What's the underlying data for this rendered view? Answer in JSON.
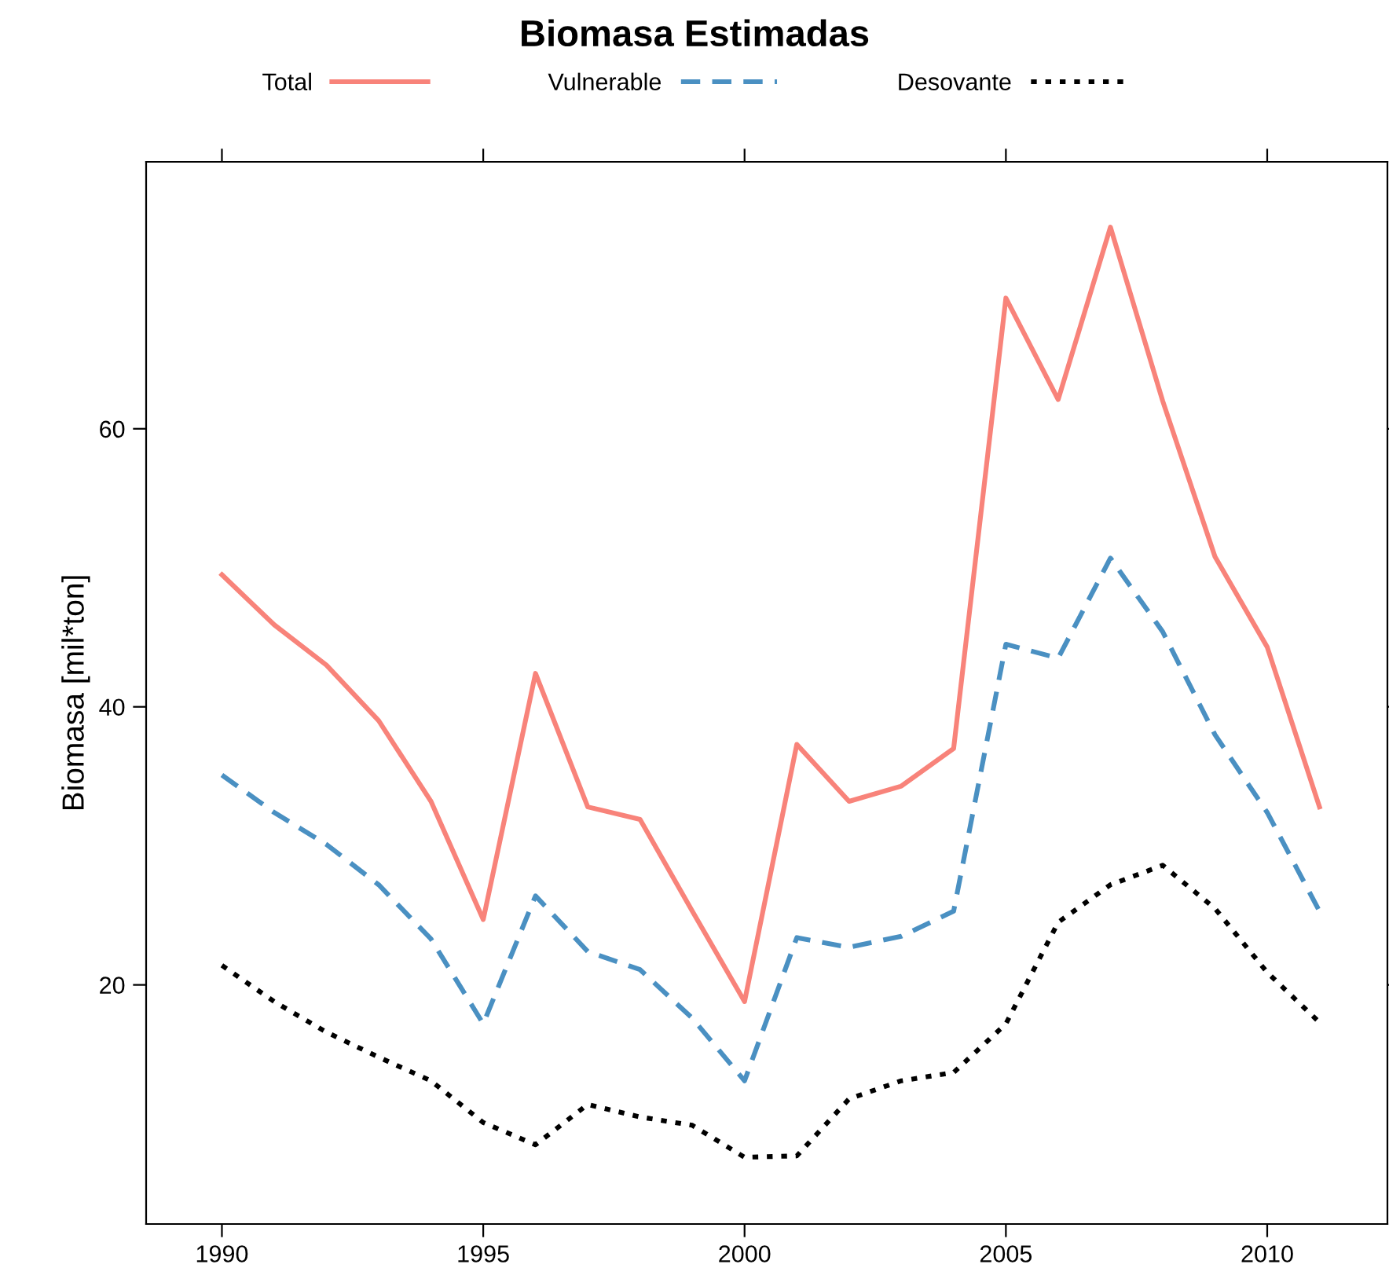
{
  "chart_data": {
    "type": "line",
    "title": "Biomasa Estimadas",
    "ylabel": "Biomasa [mil*ton]",
    "x": [
      1990,
      1991,
      1992,
      1993,
      1994,
      1995,
      1996,
      1997,
      1998,
      1999,
      2000,
      2001,
      2002,
      2003,
      2004,
      2005,
      2006,
      2007,
      2008,
      2009,
      2010,
      2011
    ],
    "series": [
      {
        "name": "Total",
        "color": "#f8837a",
        "line_style": "solid",
        "values": [
          49.5,
          45.9,
          43.0,
          39.0,
          33.2,
          24.7,
          42.4,
          32.8,
          31.9,
          25.3,
          18.8,
          37.3,
          33.2,
          34.3,
          37.0,
          69.4,
          62.1,
          74.5,
          62.0,
          50.8,
          44.3,
          32.8
        ]
      },
      {
        "name": "Vulnerable",
        "color": "#4a90c2",
        "line_style": "dashed",
        "values": [
          35.1,
          32.4,
          30.1,
          27.2,
          23.3,
          17.2,
          26.4,
          22.4,
          21.1,
          17.6,
          13.1,
          23.4,
          22.7,
          23.5,
          25.3,
          44.5,
          43.5,
          50.7,
          45.4,
          38.0,
          32.4,
          25.3
        ]
      },
      {
        "name": "Desovante",
        "color": "#000000",
        "line_style": "dotted",
        "values": [
          21.4,
          18.8,
          16.6,
          14.8,
          13.1,
          10.1,
          8.5,
          11.4,
          10.5,
          9.9,
          7.6,
          7.7,
          11.8,
          13.1,
          13.7,
          17.2,
          24.5,
          27.2,
          28.6,
          25.5,
          20.9,
          17.3
        ]
      }
    ],
    "xlim": [
      1988.55,
      2012.3
    ],
    "ylim": [
      2.8,
      79.2
    ],
    "xticks": [
      1990,
      1995,
      2000,
      2005,
      2010
    ],
    "yticks": [
      20,
      40,
      60
    ],
    "legend": "top",
    "grid": false,
    "marker": "none"
  }
}
